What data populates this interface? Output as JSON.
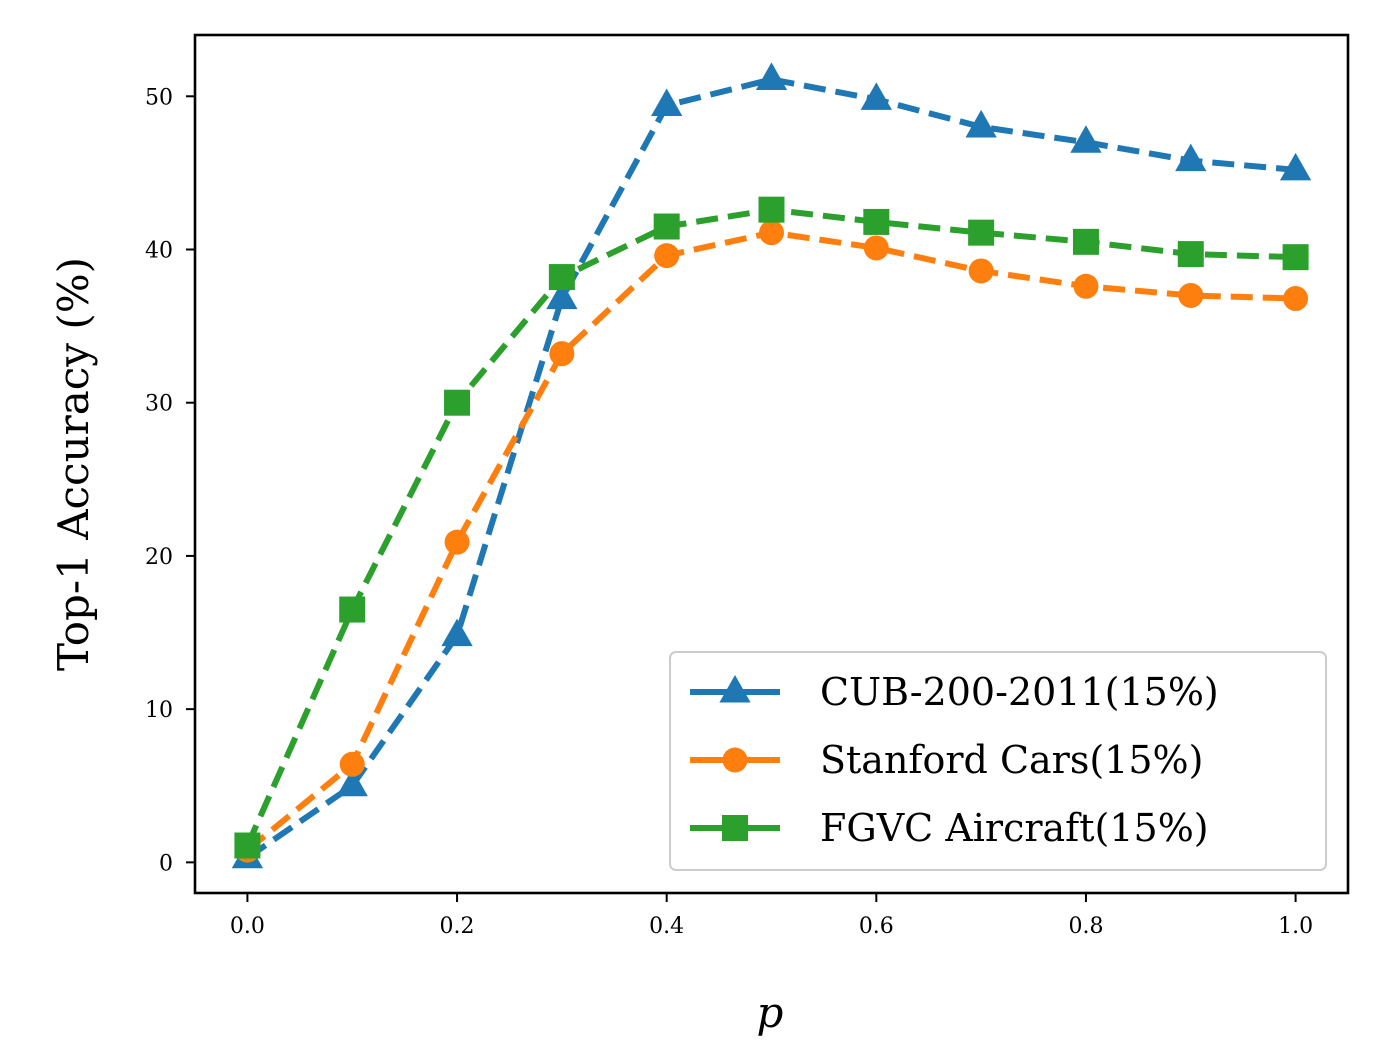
{
  "chart_data": {
    "type": "line",
    "xlabel": "p",
    "ylabel": "Top-1 Accuracy (%)",
    "xlim": [
      -0.05,
      1.05
    ],
    "ylim": [
      -2,
      54
    ],
    "x": [
      0.0,
      0.1,
      0.2,
      0.3,
      0.4,
      0.5,
      0.6,
      0.7,
      0.8,
      0.9,
      1.0
    ],
    "xticks": [
      0.0,
      0.2,
      0.4,
      0.6,
      0.8,
      1.0
    ],
    "xtick_labels": [
      "0.0",
      "0.2",
      "0.4",
      "0.6",
      "0.8",
      "1.0"
    ],
    "yticks": [
      0,
      10,
      20,
      30,
      40,
      50
    ],
    "ytick_labels": [
      "0",
      "10",
      "20",
      "30",
      "40",
      "50"
    ],
    "grid": false,
    "legend_position": "lower-right",
    "series": [
      {
        "name": "CUB-200-2011(15%)",
        "color": "#1f77b4",
        "marker": "triangle",
        "values": [
          0.3,
          5.0,
          14.8,
          36.8,
          49.4,
          51.1,
          49.8,
          48.0,
          47.0,
          45.8,
          45.2
        ]
      },
      {
        "name": "Stanford Cars(15%)",
        "color": "#ff7f0e",
        "marker": "circle",
        "values": [
          0.8,
          6.4,
          20.9,
          33.2,
          39.6,
          41.1,
          40.1,
          38.6,
          37.6,
          37.0,
          36.8
        ]
      },
      {
        "name": "FGVC Aircraft(15%)",
        "color": "#2ca02c",
        "marker": "square",
        "values": [
          1.1,
          16.5,
          30.0,
          38.2,
          41.5,
          42.6,
          41.8,
          41.1,
          40.5,
          39.7,
          39.5
        ]
      }
    ]
  }
}
